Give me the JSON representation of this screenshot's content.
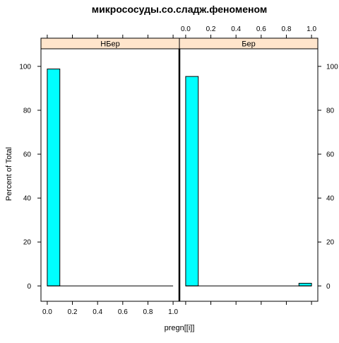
{
  "chart_data": {
    "type": "bar",
    "title": "микрососуды.со.сладж.феноменом",
    "xlabel": "pregn[[i]]",
    "ylabel": "Percent of Total",
    "x_ticks": [
      "0.0",
      "0.2",
      "0.4",
      "0.6",
      "0.8",
      "1.0"
    ],
    "y_ticks": [
      "0",
      "20",
      "40",
      "60",
      "80",
      "100"
    ],
    "xlim": [
      -0.05,
      1.05
    ],
    "ylim": [
      -7,
      108
    ],
    "bin_width": 0.1,
    "bar_color": "#00ffff",
    "strip_color": "#ffe5cc",
    "panels": [
      {
        "name": "НБер",
        "bins": [
          {
            "x0": 0.0,
            "x1": 0.1,
            "value": 98.8
          },
          {
            "x0": 0.9,
            "x1": 1.0,
            "value": 0
          }
        ]
      },
      {
        "name": "Бер",
        "bins": [
          {
            "x0": 0.0,
            "x1": 0.1,
            "value": 95.4
          },
          {
            "x0": 0.9,
            "x1": 1.0,
            "value": 1.2
          }
        ]
      }
    ]
  }
}
